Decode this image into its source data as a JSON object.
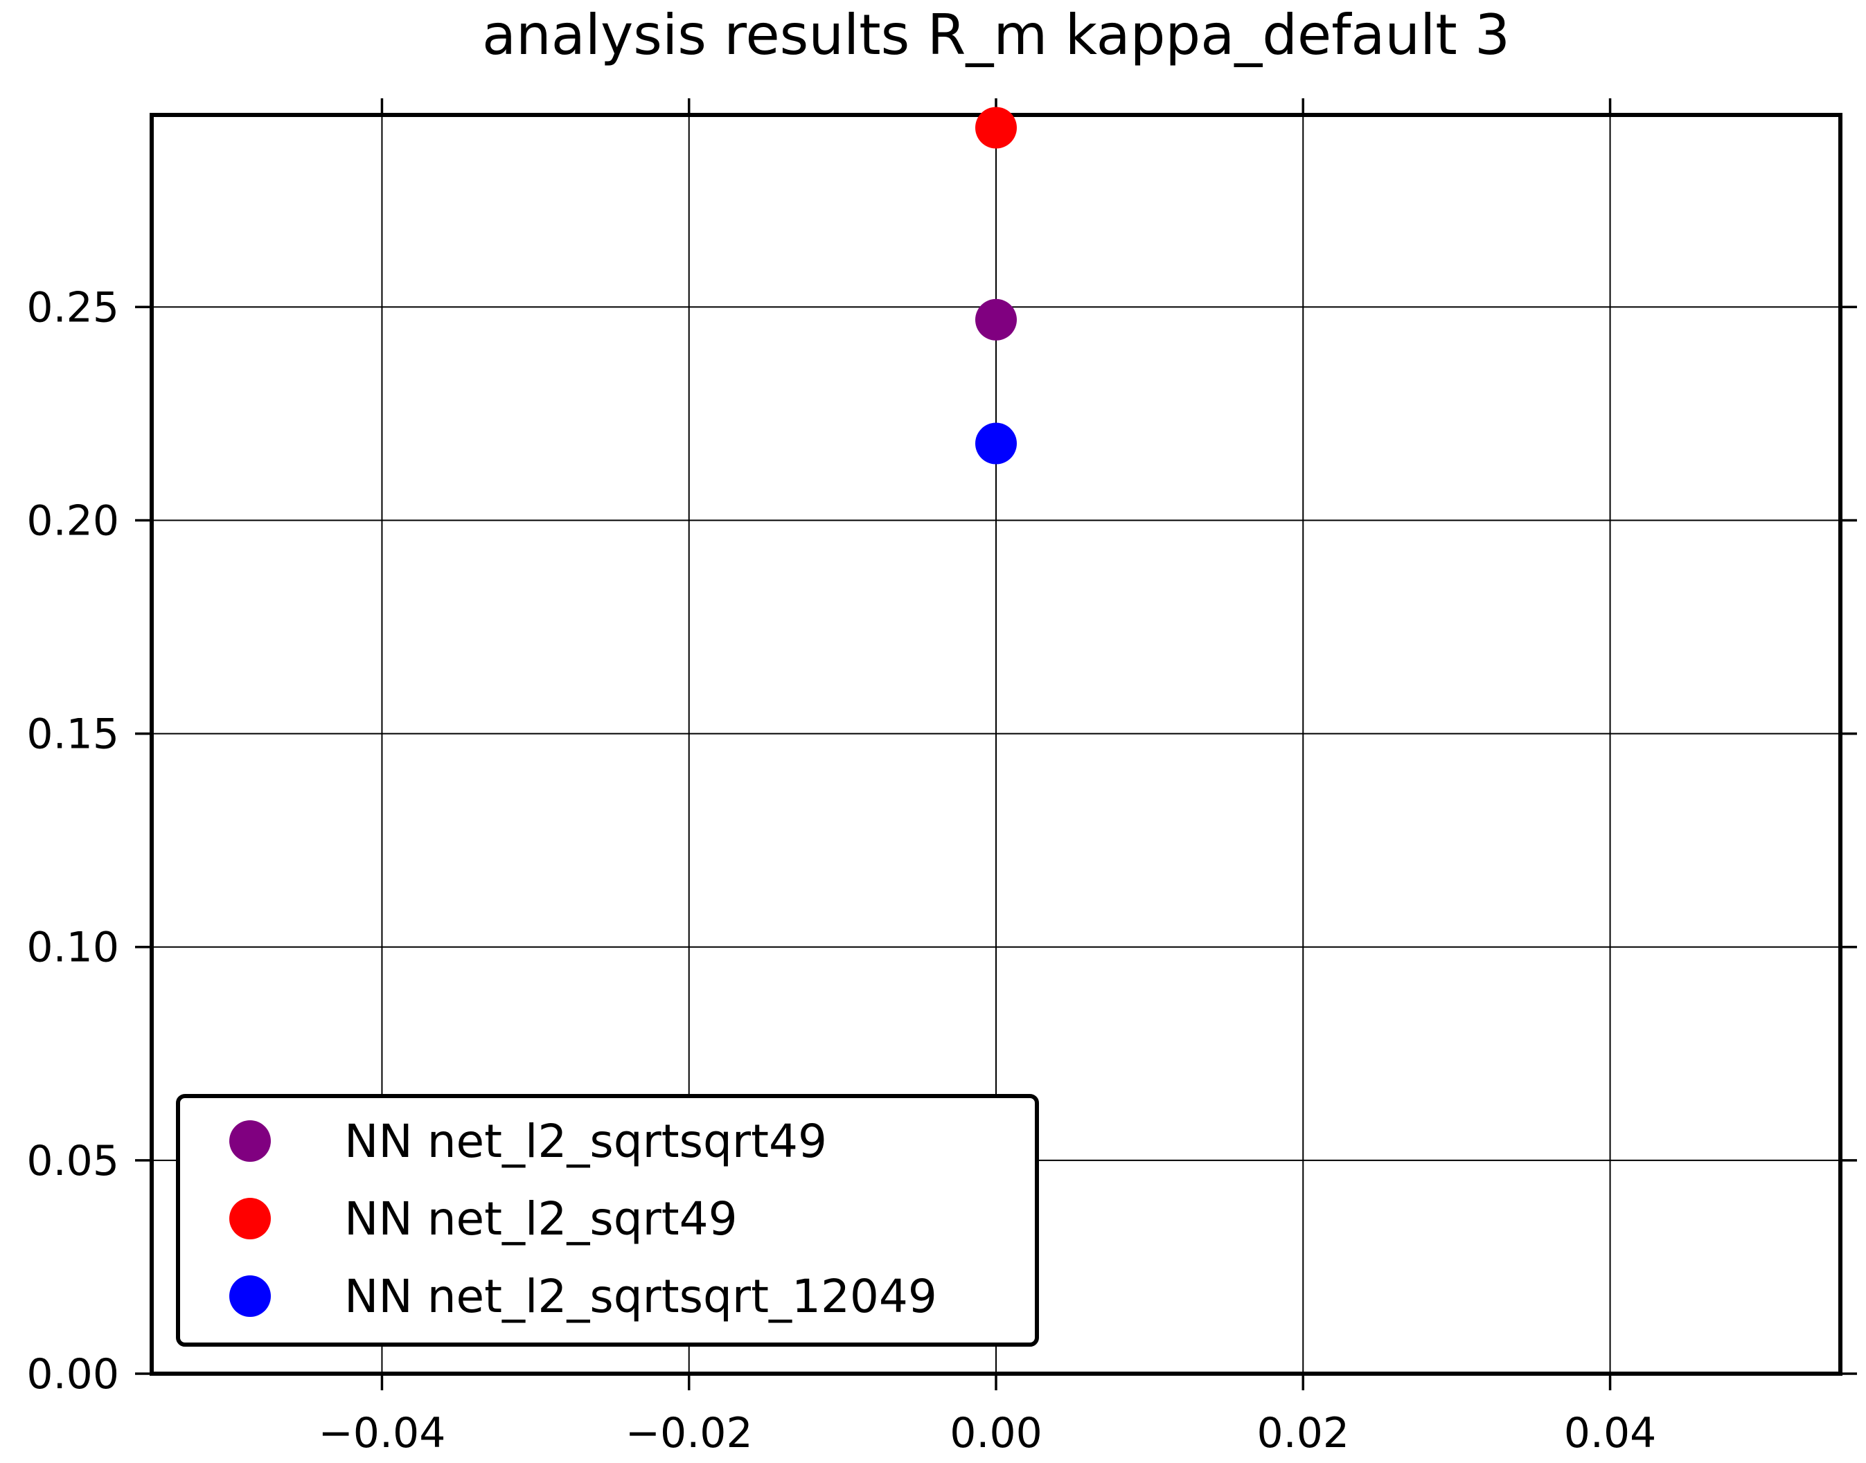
{
  "chart_data": {
    "type": "scatter",
    "title": "analysis results R_m  kappa_default 3",
    "xlabel": "",
    "ylabel": "",
    "xlim": [
      -0.055,
      0.055
    ],
    "ylim": [
      0.0,
      0.295
    ],
    "x_ticks": [
      -0.04,
      -0.02,
      0.0,
      0.02,
      0.04
    ],
    "x_tick_labels": [
      "−0.04",
      "−0.02",
      "0.00",
      "0.02",
      "0.04"
    ],
    "y_ticks": [
      0.0,
      0.05,
      0.1,
      0.15,
      0.2,
      0.25
    ],
    "y_tick_labels": [
      "0.00",
      "0.05",
      "0.10",
      "0.15",
      "0.20",
      "0.25"
    ],
    "grid": true,
    "legend_position": "lower-left",
    "series": [
      {
        "name": "NN net_l2_sqrtsqrt49",
        "color": "#800080",
        "x": [
          0.0
        ],
        "y": [
          0.247
        ]
      },
      {
        "name": "NN net_l2_sqrt49",
        "color": "#ff0000",
        "x": [
          0.0
        ],
        "y": [
          0.292
        ]
      },
      {
        "name": "NN net_l2_sqrtsqrt_12049",
        "color": "#0000ff",
        "x": [
          0.0
        ],
        "y": [
          0.218
        ]
      }
    ]
  }
}
